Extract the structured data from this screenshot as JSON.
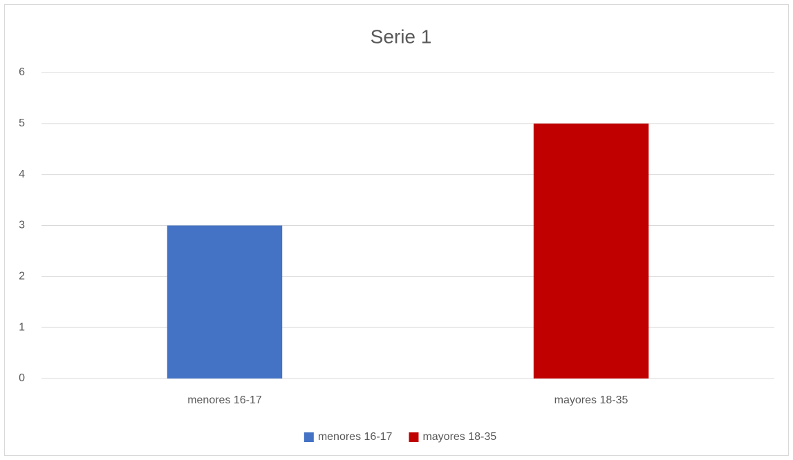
{
  "chart_data": {
    "type": "bar",
    "title": "Serie 1",
    "categories": [
      "menores 16-17",
      "mayores 18-35"
    ],
    "values": [
      3,
      5
    ],
    "colors": [
      "#4472c4",
      "#c00000"
    ],
    "ylim": [
      0,
      6
    ],
    "yticks": [
      0,
      1,
      2,
      3,
      4,
      5,
      6
    ],
    "grid": true,
    "legend": "bottom"
  }
}
